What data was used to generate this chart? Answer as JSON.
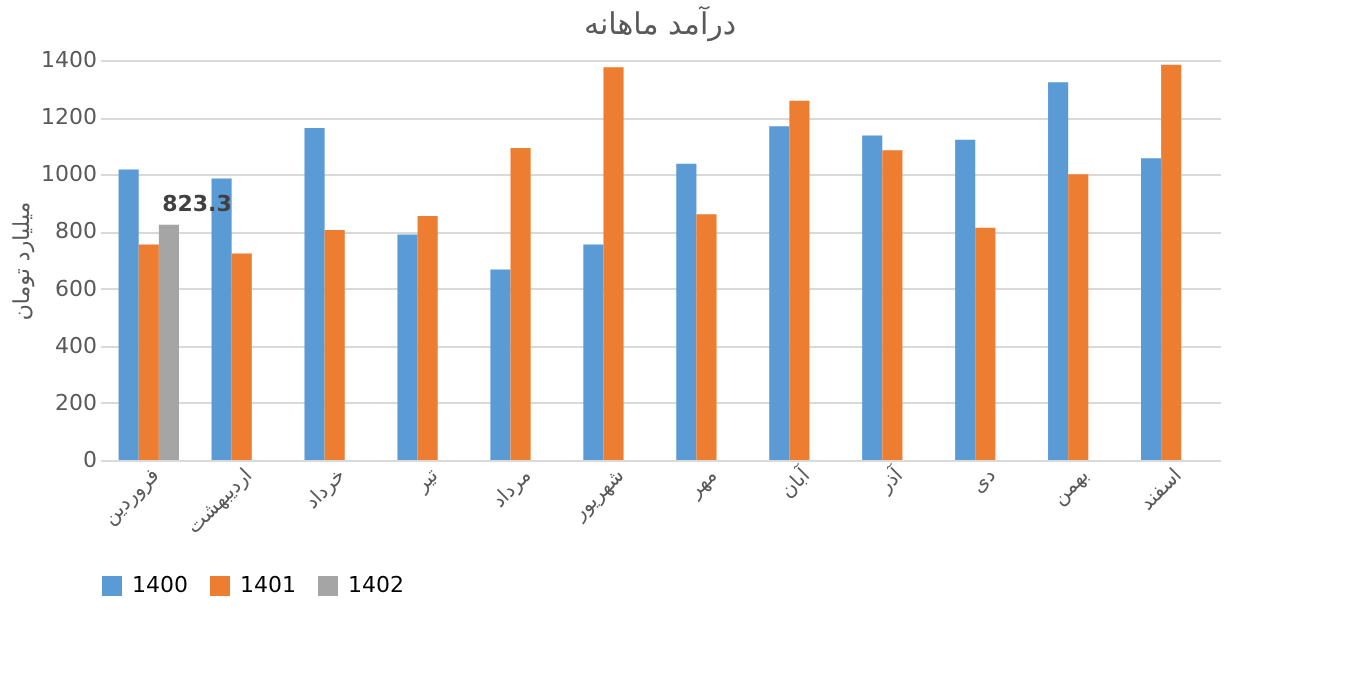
{
  "chart_data": {
    "type": "bar",
    "title": "درآمد ماهانه",
    "ylabel": "میلیارد تومان",
    "categories": [
      "فروردین",
      "اردیبهشت",
      "خرداد",
      "تیر",
      "مرداد",
      "شهریور",
      "مهر",
      "آبان",
      "آذر",
      "دی",
      "بهمن",
      "اسفند"
    ],
    "series": [
      {
        "name": "1400",
        "color": "#5b9bd5",
        "values": [
          1017,
          985,
          1162,
          789,
          667,
          754,
          1037,
          1168,
          1136,
          1121,
          1322,
          1056
        ]
      },
      {
        "name": "1401",
        "color": "#ed7d31",
        "values": [
          754,
          723,
          805,
          854,
          1092,
          1375,
          860,
          1257,
          1084,
          813,
          1000,
          1383
        ]
      },
      {
        "name": "1402",
        "color": "#a5a5a5",
        "values": [
          823.3,
          null,
          null,
          null,
          null,
          null,
          null,
          null,
          null,
          null,
          null,
          null
        ],
        "value_labels": [
          "823.3",
          null,
          null,
          null,
          null,
          null,
          null,
          null,
          null,
          null,
          null,
          null
        ]
      }
    ],
    "ylim": [
      0,
      1400
    ],
    "yticks": [
      0,
      200,
      400,
      600,
      800,
      1000,
      1200,
      1400
    ],
    "grid": "y",
    "legend": "bottom"
  }
}
